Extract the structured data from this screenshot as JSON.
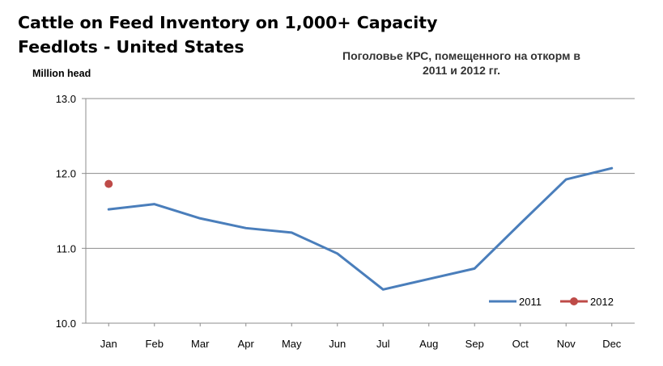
{
  "header": {
    "title_line1": "Cattle on Feed Inventory on 1,000+ Capacity",
    "title_line2": "Feedlots - United States",
    "subtitle_line1": "Поголовье КРС, помещенного на откорм в",
    "subtitle_line2": "2011 и 2012 гг."
  },
  "chart_data": {
    "type": "line",
    "title": "Cattle on Feed Inventory on 1,000+ Capacity Feedlots - United States",
    "subtitle": "Поголовье КРС, помещенного на откорм в 2011 и 2012 гг.",
    "ylabel": "Million head",
    "xlabel": "",
    "categories": [
      "Jan",
      "Feb",
      "Mar",
      "Apr",
      "May",
      "Jun",
      "Jul",
      "Aug",
      "Sep",
      "Oct",
      "Nov",
      "Dec"
    ],
    "yticks": [
      "10.0",
      "11.0",
      "12.0",
      "13.0"
    ],
    "ylim": [
      10.0,
      13.0
    ],
    "grid": true,
    "legend_position": "bottom-right",
    "series": [
      {
        "name": "2011",
        "color": "#4a7ebb",
        "values": [
          11.52,
          11.59,
          11.4,
          11.27,
          11.21,
          10.93,
          10.45,
          10.59,
          10.73,
          11.33,
          11.92,
          12.07
        ]
      },
      {
        "name": "2012",
        "color": "#be4b48",
        "values": [
          11.86,
          null,
          null,
          null,
          null,
          null,
          null,
          null,
          null,
          null,
          null,
          null
        ]
      }
    ]
  }
}
